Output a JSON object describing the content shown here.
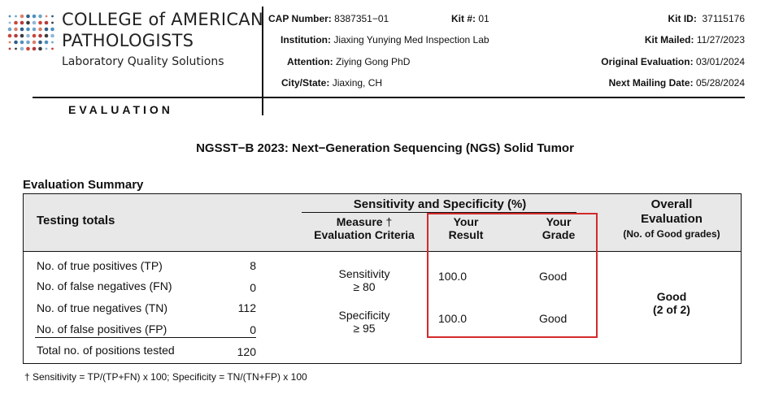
{
  "header": {
    "logo": {
      "line1": "COLLEGE of AMERICAN",
      "line2": "PATHOLOGISTS",
      "line3": "Laboratory Quality Solutions"
    },
    "section_label": "EVALUATION",
    "cap_number_label": "CAP Number:",
    "cap_number": "8387351−01",
    "kit_no_label": "Kit #:",
    "kit_no": "01",
    "kit_id_label": "Kit ID:",
    "kit_id": "37115176",
    "institution_label": "Institution:",
    "institution": "Jiaxing Yunying Med Inspection Lab",
    "kit_mailed_label": "Kit Mailed:",
    "kit_mailed": "11/27/2023",
    "attention_label": "Attention:",
    "attention": "Ziying Gong PhD",
    "original_eval_label": "Original Evaluation:",
    "original_eval": "03/01/2024",
    "city_label": "City/State:",
    "city": "Jiaxing, CH",
    "next_mailing_label": "Next Mailing Date:",
    "next_mailing": "05/28/2024"
  },
  "title": "NGSST−B 2023: Next−Generation Sequencing (NGS) Solid Tumor",
  "summary": {
    "title": "Evaluation Summary",
    "headers": {
      "testing_totals": "Testing totals",
      "sens_spec_group": "Sensitivity and Specificity (%)",
      "measure_line1": "Measure",
      "measure_dagger": "†",
      "measure_line2": "Evaluation Criteria",
      "your_result_line1": "Your",
      "your_result_line2": "Result",
      "your_grade_line1": "Your",
      "your_grade_line2": "Grade",
      "overall_line1": "Overall",
      "overall_line2": "Evaluation",
      "overall_line3": "(No. of Good grades)"
    },
    "totals": [
      {
        "label": "No. of true positives (TP)",
        "value": "8"
      },
      {
        "label": "No. of false negatives (FN)",
        "value": "0"
      },
      {
        "label": "No. of true negatives (TN)",
        "value": "112"
      },
      {
        "label": "No. of false positives (FP)",
        "value": "0"
      }
    ],
    "total_row": {
      "label": "Total no. of positions tested",
      "value": "120"
    },
    "measures": [
      {
        "name": "Sensitivity",
        "criteria": "≥ 80",
        "result": "100.0",
        "grade": "Good"
      },
      {
        "name": "Specificity",
        "criteria": "≥ 95",
        "result": "100.0",
        "grade": "Good"
      }
    ],
    "overall": {
      "grade": "Good",
      "count": "(2 of 2)"
    }
  },
  "footnote": "† Sensitivity = TP/(TP+FN) x 100; Specificity = TN/(TN+FP) x 100",
  "colors": {
    "highlight": "#d42a2a",
    "header_bg": "#e8e8e8"
  }
}
